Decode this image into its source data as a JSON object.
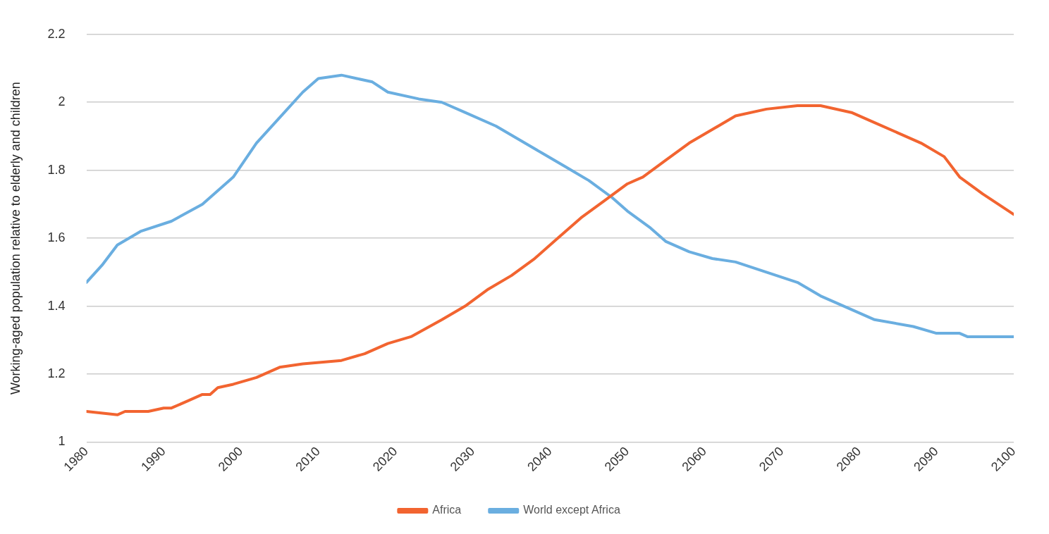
{
  "chart_data": {
    "type": "line",
    "ylabel": "Working-aged population relative to elderly and children",
    "xlim": [
      1980,
      2100
    ],
    "xticks": [
      1980,
      1990,
      2000,
      2010,
      2020,
      2030,
      2040,
      2050,
      2060,
      2070,
      2080,
      2090,
      2100
    ],
    "ylim": [
      1,
      2.2
    ],
    "yticks": [
      1,
      1.2,
      1.4,
      1.6,
      1.8,
      2,
      2.2
    ],
    "grid": "y",
    "legend": "bottom",
    "marker": "none",
    "line_style": "solid",
    "series": [
      {
        "name": "Africa",
        "color": "#f26430",
        "x": [
          1980,
          1984,
          1985,
          1988,
          1990,
          1991,
          1993,
          1995,
          1996,
          1997,
          1999,
          2002,
          2005,
          2008,
          2013,
          2016,
          2019,
          2022,
          2026,
          2029,
          2032,
          2035,
          2038,
          2041,
          2044,
          2047,
          2050,
          2052,
          2055,
          2058,
          2061,
          2064,
          2068,
          2072,
          2075,
          2079,
          2082,
          2085,
          2088,
          2091,
          2093,
          2096,
          2100
        ],
        "values": [
          1.09,
          1.08,
          1.09,
          1.09,
          1.1,
          1.1,
          1.12,
          1.14,
          1.14,
          1.16,
          1.17,
          1.19,
          1.22,
          1.23,
          1.24,
          1.26,
          1.29,
          1.31,
          1.36,
          1.4,
          1.45,
          1.49,
          1.54,
          1.6,
          1.66,
          1.71,
          1.76,
          1.78,
          1.83,
          1.88,
          1.92,
          1.96,
          1.98,
          1.99,
          1.99,
          1.97,
          1.94,
          1.91,
          1.88,
          1.84,
          1.78,
          1.73,
          1.67
        ]
      },
      {
        "name": "World except Africa",
        "color": "#6aaee0",
        "x": [
          1980,
          1982,
          1984,
          1987,
          1991,
          1995,
          1999,
          2002,
          2006,
          2008,
          2010,
          2013,
          2015,
          2017,
          2019,
          2023,
          2026,
          2029,
          2033,
          2036,
          2039,
          2042,
          2045,
          2048,
          2050,
          2053,
          2055,
          2058,
          2061,
          2064,
          2068,
          2072,
          2075,
          2079,
          2082,
          2087,
          2090,
          2093,
          2094,
          2100
        ],
        "values": [
          1.47,
          1.52,
          1.58,
          1.62,
          1.65,
          1.7,
          1.78,
          1.88,
          1.98,
          2.03,
          2.07,
          2.08,
          2.07,
          2.06,
          2.03,
          2.01,
          2,
          1.97,
          1.93,
          1.89,
          1.85,
          1.81,
          1.77,
          1.72,
          1.68,
          1.63,
          1.59,
          1.56,
          1.54,
          1.53,
          1.5,
          1.47,
          1.43,
          1.39,
          1.36,
          1.34,
          1.32,
          1.32,
          1.31,
          1.31
        ]
      }
    ]
  }
}
